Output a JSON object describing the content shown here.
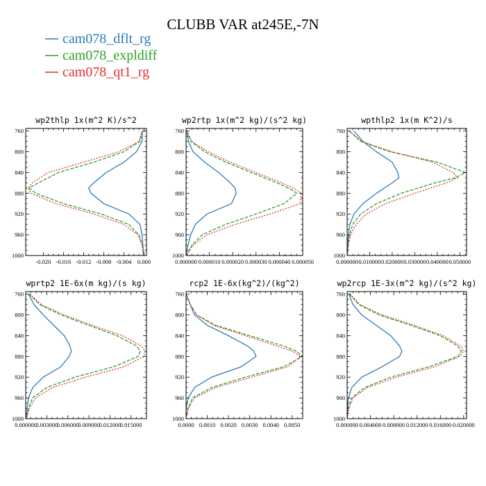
{
  "figure": {
    "title": "CLUBB VAR at245E,-7N",
    "legend": [
      {
        "label": "cam078_dflt_rg",
        "color": "#2b7bb9"
      },
      {
        "label": "cam078_expldiff",
        "color": "#2ca02c"
      },
      {
        "label": "cam078_qt1_rg",
        "color": "#e0302c"
      }
    ]
  },
  "chart_data": [
    {
      "type": "line",
      "title": "wp2thlp  1x(m^2 K)/s^2",
      "y_ticks": [
        "760",
        "800",
        "840",
        "880",
        "920",
        "960",
        "1000"
      ],
      "x_ticks": [
        "-0.020",
        "-0.016",
        "-0.012",
        "-0.008",
        "-0.004",
        "0.000"
      ],
      "xlim": [
        -0.0235,
        0.0005
      ],
      "ylim": [
        755,
        1000
      ],
      "y": [
        760,
        780,
        800,
        820,
        840,
        860,
        870,
        880,
        900,
        920,
        940,
        960,
        980,
        1000
      ],
      "series": [
        {
          "name": "cam078_dflt_rg",
          "color": "#2b7bb9",
          "dash": "",
          "x": [
            -0.0003,
            -0.0004,
            -0.0015,
            -0.004,
            -0.0075,
            -0.01,
            -0.011,
            -0.0105,
            -0.008,
            -0.003,
            -0.0008,
            -0.0004,
            -0.0002,
            -0.0001
          ]
        },
        {
          "name": "cam078_expldiff",
          "color": "#2ca02c",
          "dash": "5,2",
          "x": [
            -0.0003,
            -0.0008,
            -0.004,
            -0.01,
            -0.017,
            -0.021,
            -0.0228,
            -0.0215,
            -0.016,
            -0.0085,
            -0.003,
            -0.001,
            -0.0003,
            -0.0001
          ]
        },
        {
          "name": "cam078_qt1_rg",
          "color": "#e0302c",
          "dash": "2,2",
          "x": [
            -0.0004,
            -0.001,
            -0.005,
            -0.012,
            -0.019,
            -0.0222,
            -0.023,
            -0.0225,
            -0.0175,
            -0.01,
            -0.004,
            -0.0012,
            -0.0004,
            -0.0001
          ]
        }
      ]
    },
    {
      "type": "line",
      "title": "wp2rtp  1x(m^2 kg)/(s^2 kg)",
      "y_ticks": [
        "760",
        "800",
        "840",
        "880",
        "920",
        "960",
        "1000"
      ],
      "x_ticks": [
        "0.000000",
        "0.000010",
        "0.000020",
        "0.000030",
        "0.000040",
        "0.000050"
      ],
      "xlim": [
        0,
        5e-05
      ],
      "ylim": [
        755,
        1000
      ],
      "y": [
        760,
        780,
        800,
        820,
        840,
        860,
        870,
        880,
        900,
        920,
        940,
        960,
        980,
        1000
      ],
      "series": [
        {
          "name": "cam078_dflt_rg",
          "color": "#2b7bb9",
          "dash": "",
          "x": [
            3e-07,
            1e-06,
            3e-06,
            8e-06,
            1.4e-05,
            1.9e-05,
            2.1e-05,
            2.15e-05,
            1.95e-05,
            9e-06,
            4e-06,
            2e-06,
            8e-07,
            1e-07
          ]
        },
        {
          "name": "cam078_expldiff",
          "color": "#2ca02c",
          "dash": "5,2",
          "x": [
            3e-07,
            2e-06,
            8e-06,
            1.7e-05,
            2.8e-05,
            3.9e-05,
            4.4e-05,
            4.75e-05,
            4.2e-05,
            3e-05,
            1.7e-05,
            7e-06,
            2.5e-06,
            2e-07
          ]
        },
        {
          "name": "cam078_qt1_rg",
          "color": "#e0302c",
          "dash": "2,2",
          "x": [
            4e-07,
            2.5e-06,
            9.5e-06,
            1.9e-05,
            3e-05,
            4.1e-05,
            4.6e-05,
            4.95e-05,
            4.9e-05,
            3.6e-05,
            2.1e-05,
            9e-06,
            3e-06,
            2e-07
          ]
        }
      ]
    },
    {
      "type": "line",
      "title": "wpthlp2  1x(m K^2)/s",
      "y_ticks": [
        "760",
        "800",
        "840",
        "880",
        "920",
        "960",
        "1000"
      ],
      "x_ticks": [
        "0.000000",
        "0.010000",
        "0.020000",
        "0.030000",
        "0.040000",
        "0.050000"
      ],
      "xlim": [
        0,
        0.053
      ],
      "ylim": [
        755,
        1000
      ],
      "y": [
        760,
        780,
        800,
        820,
        840,
        850,
        860,
        880,
        900,
        920,
        940,
        960,
        980,
        1000
      ],
      "series": [
        {
          "name": "cam078_dflt_rg",
          "color": "#2b7bb9",
          "dash": "",
          "x": [
            0.003,
            0.007,
            0.013,
            0.02,
            0.0225,
            0.023,
            0.02,
            0.013,
            0.007,
            0.003,
            0.0012,
            0.0005,
            0.0002,
            0.0001
          ]
        },
        {
          "name": "cam078_expldiff",
          "color": "#2ca02c",
          "dash": "5,2",
          "x": [
            0.001,
            0.006,
            0.019,
            0.04,
            0.0525,
            0.048,
            0.039,
            0.024,
            0.013,
            0.006,
            0.0025,
            0.001,
            0.0004,
            0.0001
          ]
        },
        {
          "name": "cam078_qt1_rg",
          "color": "#e0302c",
          "dash": "2,2",
          "x": [
            0.001,
            0.0065,
            0.02,
            0.038,
            0.047,
            0.049,
            0.044,
            0.03,
            0.017,
            0.0085,
            0.004,
            0.0015,
            0.0005,
            0.0001
          ]
        }
      ]
    },
    {
      "type": "line",
      "title": "wprtp2  1E-6x(m kg)/(s kg)",
      "y_ticks": [
        "760",
        "800",
        "840",
        "880",
        "920",
        "960",
        "1000"
      ],
      "x_ticks": [
        "0.000000",
        "0.003000",
        "0.006000",
        "0.009000",
        "0.012000",
        "0.015000"
      ],
      "xlim": [
        0,
        0.0172
      ],
      "ylim": [
        755,
        1000
      ],
      "y": [
        760,
        780,
        800,
        820,
        840,
        860,
        870,
        880,
        900,
        920,
        940,
        960,
        980,
        1000
      ],
      "series": [
        {
          "name": "cam078_dflt_rg",
          "color": "#2b7bb9",
          "dash": "",
          "x": [
            0.0004,
            0.0012,
            0.0025,
            0.004,
            0.0055,
            0.0063,
            0.0065,
            0.0062,
            0.005,
            0.0025,
            0.001,
            0.0004,
            0.0002,
            0.0001
          ]
        },
        {
          "name": "cam078_expldiff",
          "color": "#2ca02c",
          "dash": "5,2",
          "x": [
            0.0005,
            0.002,
            0.005,
            0.009,
            0.013,
            0.0158,
            0.0163,
            0.016,
            0.0125,
            0.007,
            0.003,
            0.001,
            0.0004,
            0.0001
          ]
        },
        {
          "name": "cam078_qt1_rg",
          "color": "#e0302c",
          "dash": "2,2",
          "x": [
            0.0006,
            0.0022,
            0.0055,
            0.0095,
            0.0138,
            0.0165,
            0.017,
            0.0168,
            0.014,
            0.0085,
            0.0038,
            0.0014,
            0.0005,
            0.0001
          ]
        }
      ]
    },
    {
      "type": "line",
      "title": "rcp2  1E-6x(kg^2)/(kg^2)",
      "y_ticks": [
        "760",
        "800",
        "840",
        "880",
        "920",
        "960",
        "1000"
      ],
      "x_ticks": [
        "0.0000",
        "0.0010",
        "0.0020",
        "0.0030",
        "0.0040",
        "0.0050"
      ],
      "xlim": [
        0,
        0.0055
      ],
      "ylim": [
        755,
        1000
      ],
      "y": [
        760,
        780,
        800,
        820,
        840,
        860,
        870,
        880,
        900,
        920,
        940,
        960,
        980,
        1000
      ],
      "series": [
        {
          "name": "cam078_dflt_rg",
          "color": "#2b7bb9",
          "dash": "",
          "x": [
            0.0,
            0.0002,
            0.0004,
            0.001,
            0.002,
            0.0029,
            0.0032,
            0.0033,
            0.0026,
            0.0012,
            0.0004,
            0.0001,
            0.0,
            0.0
          ]
        },
        {
          "name": "cam078_expldiff",
          "color": "#2ca02c",
          "dash": "5,2",
          "x": [
            0.0,
            0.0002,
            0.0005,
            0.0014,
            0.003,
            0.0046,
            0.0052,
            0.0055,
            0.0046,
            0.0028,
            0.0012,
            0.0003,
            0.0001,
            0.0
          ]
        },
        {
          "name": "cam078_qt1_rg",
          "color": "#e0302c",
          "dash": "2,2",
          "x": [
            0.0,
            0.0002,
            0.0005,
            0.0013,
            0.0028,
            0.0043,
            0.005,
            0.0054,
            0.0048,
            0.0031,
            0.0014,
            0.0004,
            0.0001,
            0.0
          ]
        }
      ]
    },
    {
      "type": "line",
      "title": "wp2rcp  1E-3x(m^2 kg)/(s^2 kg)",
      "y_ticks": [
        "760",
        "800",
        "840",
        "880",
        "920",
        "960",
        "1000"
      ],
      "x_ticks": [
        "0.000000",
        "0.004000",
        "0.008000",
        "0.012000",
        "0.016000",
        "0.020000"
      ],
      "xlim": [
        0,
        0.0205
      ],
      "ylim": [
        755,
        1000
      ],
      "y": [
        760,
        780,
        800,
        820,
        840,
        860,
        870,
        880,
        900,
        920,
        940,
        960,
        980,
        1000
      ],
      "series": [
        {
          "name": "cam078_dflt_rg",
          "color": "#2b7bb9",
          "dash": "",
          "x": [
            0.0003,
            0.001,
            0.0025,
            0.005,
            0.0075,
            0.009,
            0.0094,
            0.009,
            0.006,
            0.0025,
            0.0008,
            0.0002,
            0.0001,
            0.0
          ]
        },
        {
          "name": "cam078_expldiff",
          "color": "#2ca02c",
          "dash": "5,2",
          "x": [
            0.0004,
            0.002,
            0.0055,
            0.011,
            0.016,
            0.019,
            0.0196,
            0.019,
            0.014,
            0.0075,
            0.003,
            0.0008,
            0.0002,
            0.0
          ]
        },
        {
          "name": "cam078_qt1_rg",
          "color": "#e0302c",
          "dash": "2,2",
          "x": [
            0.0005,
            0.0022,
            0.006,
            0.0115,
            0.0165,
            0.0195,
            0.02,
            0.0193,
            0.015,
            0.0085,
            0.0035,
            0.001,
            0.0003,
            0.0
          ]
        }
      ]
    }
  ]
}
